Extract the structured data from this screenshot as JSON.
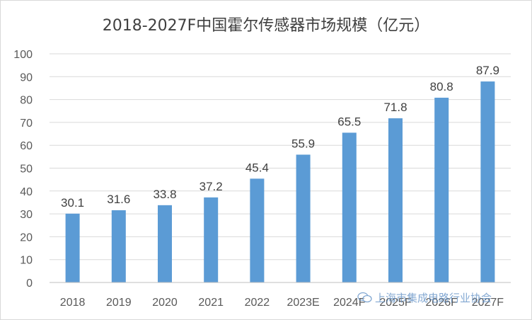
{
  "chart_data": {
    "type": "bar",
    "title": "2018-2027F中国霍尔传感器市场规模（亿元）",
    "categories": [
      "2018",
      "2019",
      "2020",
      "2021",
      "2022",
      "2023E",
      "2024F",
      "2025F",
      "2026F",
      "2027F"
    ],
    "values": [
      30.1,
      31.6,
      33.8,
      37.2,
      45.4,
      55.9,
      65.5,
      71.8,
      80.8,
      87.9
    ],
    "ylim": [
      0,
      100
    ],
    "yticks": [
      0,
      10,
      20,
      30,
      40,
      50,
      60,
      70,
      80,
      90,
      100
    ],
    "grid": true,
    "bar_color": "#5b9bd5",
    "data_labels": true
  },
  "watermark": {
    "text": "上海市集成电路行业协会",
    "icon": "wechat-icon"
  }
}
